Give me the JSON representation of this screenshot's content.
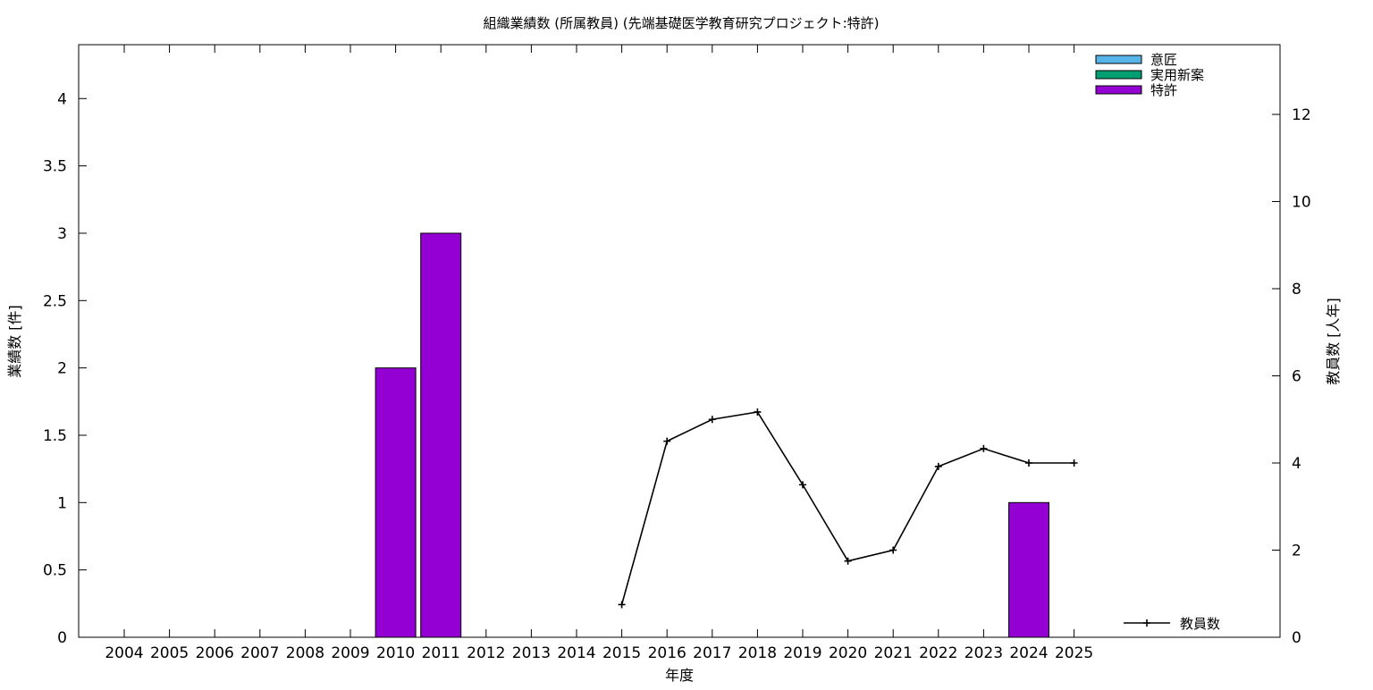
{
  "chart_data": {
    "type": "bar",
    "title": "組織業績数 (所属教員) (先端基礎医学教育研究プロジェクト:特許)",
    "xlabel": "年度",
    "ylabel": "業績数 [件]",
    "y2label": "教員数 [人年]",
    "categories": [
      "2004",
      "2005",
      "2006",
      "2007",
      "2008",
      "2009",
      "2010",
      "2011",
      "2012",
      "2013",
      "2014",
      "2015",
      "2016",
      "2017",
      "2018",
      "2019",
      "2020",
      "2021",
      "2022",
      "2023",
      "2024",
      "2025"
    ],
    "ylim": [
      0,
      4.4
    ],
    "y2lim": [
      0,
      13.6
    ],
    "yticks": [
      0,
      0.5,
      1,
      1.5,
      2,
      2.5,
      3,
      3.5,
      4
    ],
    "ytick_labels": [
      "0",
      "0.5",
      "1",
      "1.5",
      "2",
      "2.5",
      "3",
      "3.5",
      "4"
    ],
    "y2ticks": [
      0,
      2,
      4,
      6,
      8,
      10,
      12
    ],
    "y2tick_labels": [
      "0",
      "2",
      "4",
      "6",
      "8",
      "10",
      "12"
    ],
    "series": [
      {
        "name": "意匠",
        "kind": "bar",
        "color": "#56b4e9",
        "values": [
          0,
          0,
          0,
          0,
          0,
          0,
          0,
          0,
          0,
          0,
          0,
          0,
          0,
          0,
          0,
          0,
          0,
          0,
          0,
          0,
          0,
          0
        ]
      },
      {
        "name": "実用新案",
        "kind": "bar",
        "color": "#009e73",
        "values": [
          0,
          0,
          0,
          0,
          0,
          0,
          0,
          0,
          0,
          0,
          0,
          0,
          0,
          0,
          0,
          0,
          0,
          0,
          0,
          0,
          0,
          0
        ]
      },
      {
        "name": "特許",
        "kind": "bar",
        "color": "#9400d3",
        "values": [
          0,
          0,
          0,
          0,
          0,
          0,
          2,
          3,
          0,
          0,
          0,
          0,
          0,
          0,
          0,
          0,
          0,
          0,
          0,
          0,
          1,
          0
        ]
      },
      {
        "name": "教員数",
        "kind": "line",
        "axis": "y2",
        "color": "#000000",
        "x": [
          "2015",
          "2016",
          "2017",
          "2018",
          "2019",
          "2020",
          "2021",
          "2022",
          "2023",
          "2024",
          "2025"
        ],
        "values": [
          0.75,
          4.5,
          5.0,
          5.17,
          3.5,
          1.75,
          2.0,
          3.92,
          4.33,
          4.0,
          4.0
        ]
      }
    ],
    "legend": "top-right",
    "line_legend": "bottom-right",
    "grid": false
  }
}
